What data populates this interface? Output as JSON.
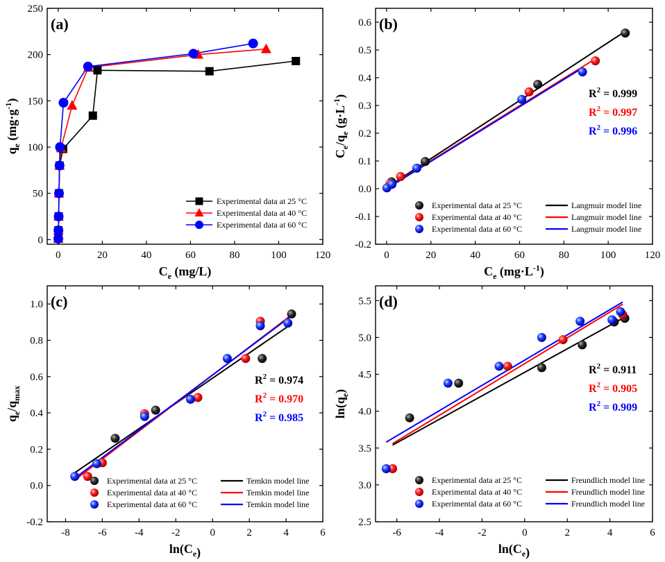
{
  "chart_data": [
    {
      "id": "a",
      "type": "line",
      "panel_label": "(a)",
      "xlabel": "C",
      "xlabel_sub": "e",
      "xlabel_rest": " (mg/L)",
      "ylabel": "q",
      "ylabel_sub": "e",
      "ylabel_rest": " (mg·g",
      "ylabel_sup": "-1",
      "ylabel_close": ")",
      "xlim": [
        -5,
        120
      ],
      "ylim": [
        -5,
        250
      ],
      "xticks": [
        0,
        20,
        40,
        60,
        80,
        100,
        120
      ],
      "yticks": [
        0,
        50,
        100,
        150,
        200,
        250
      ],
      "legend_position": "bottom-right",
      "series": [
        {
          "name": "Experimental data at 25 °C",
          "color": "#000000",
          "marker": "square",
          "x": [
            0.05,
            0.1,
            0.2,
            0.35,
            0.6,
            2.2,
            15.7,
            17.8,
            68.6,
            107.8
          ],
          "y": [
            1,
            10,
            25,
            50,
            80,
            98,
            134,
            183,
            182,
            193
          ]
        },
        {
          "name": "Experimental data at 40 °C",
          "color": "#ff0000",
          "marker": "triangle",
          "x": [
            0.05,
            0.1,
            0.2,
            0.35,
            0.6,
            1.3,
            6.3,
            13.7,
            63.5,
            94.3
          ],
          "y": [
            1,
            10,
            25,
            50,
            80,
            99,
            145,
            186,
            200,
            206
          ]
        },
        {
          "name": "Experimental data at 60 °C",
          "color": "#0000ff",
          "marker": "circle",
          "x": [
            0.05,
            0.1,
            0.2,
            0.35,
            0.6,
            0.8,
            2.4,
            13.5,
            61.3,
            88.4
          ],
          "y": [
            1,
            10,
            25,
            50,
            80,
            100,
            148,
            187,
            201,
            212
          ]
        }
      ]
    },
    {
      "id": "b",
      "type": "scatter",
      "panel_label": "(b)",
      "xlabel": "C",
      "xlabel_sub": "e",
      "xlabel_rest": " (mg·L",
      "xlabel_sup": "-1",
      "xlabel_close": ")",
      "ylabel": "C",
      "ylabel_sub": "e",
      "ylabel_rest": "/q",
      "ylabel_sub2": "e",
      "ylabel_rest2": " (g·L",
      "ylabel_sup": "-1",
      "ylabel_close": ")",
      "xlim": [
        -5,
        120
      ],
      "ylim": [
        -0.2,
        0.65
      ],
      "xticks": [
        0,
        20,
        40,
        60,
        80,
        100,
        120
      ],
      "yticks": [
        -0.2,
        -0.1,
        0.0,
        0.1,
        0.2,
        0.3,
        0.4,
        0.5,
        0.6
      ],
      "legend_position": "bottom-right",
      "r2": [
        {
          "text": "R² = 0.999",
          "color": "#000000"
        },
        {
          "text": "R² = 0.997",
          "color": "#ff0000"
        },
        {
          "text": "R² = 0.996",
          "color": "#0000ff"
        }
      ],
      "series": [
        {
          "name": "Experimental data at 25 °C",
          "line_name": "Langmuir model line",
          "color": "#000000",
          "x": [
            2.2,
            17.4,
            68.2,
            107.7
          ],
          "y": [
            0.025,
            0.098,
            0.376,
            0.561
          ],
          "fit_x": [
            0,
            107.7
          ],
          "fit_y": [
            0.004,
            0.567
          ]
        },
        {
          "name": "Experimental data at 40 °C",
          "line_name": "Langmuir model line",
          "color": "#ff0000",
          "x": [
            1.5,
            6.3,
            64.3,
            94.2
          ],
          "y": [
            0.018,
            0.044,
            0.349,
            0.461
          ],
          "fit_x": [
            0,
            94.2
          ],
          "fit_y": [
            0.002,
            0.468
          ]
        },
        {
          "name": "Experimental data at 60 °C",
          "line_name": "Langmuir model line",
          "color": "#0000ff",
          "x": [
            0.1,
            2.4,
            13.6,
            61.0,
            88.4
          ],
          "y": [
            0.003,
            0.016,
            0.074,
            0.322,
            0.421
          ],
          "fit_x": [
            0,
            88.4
          ],
          "fit_y": [
            0.0,
            0.435
          ]
        }
      ]
    },
    {
      "id": "c",
      "type": "scatter",
      "panel_label": "(c)",
      "xlabel": "ln(C",
      "xlabel_sub": "e",
      "xlabel_close": ")",
      "ylabel": "q",
      "ylabel_sub": "e",
      "ylabel_rest": "/q",
      "ylabel_sub2": "max",
      "xlim": [
        -9,
        6
      ],
      "ylim": [
        -0.2,
        1.1
      ],
      "xticks": [
        -8,
        -6,
        -4,
        -2,
        0,
        2,
        4,
        6
      ],
      "yticks": [
        -0.2,
        0.0,
        0.2,
        0.4,
        0.6,
        0.8,
        1.0
      ],
      "legend_position": "bottom-right",
      "r2": [
        {
          "text": "R² = 0.974",
          "color": "#000000"
        },
        {
          "text": "R² = 0.970",
          "color": "#ff0000"
        },
        {
          "text": "R² = 0.985",
          "color": "#0000ff"
        }
      ],
      "series": [
        {
          "name": "Experimental data at 25 °C",
          "line_name": "Temkin model line",
          "color": "#000000",
          "x": [
            -5.3,
            -3.1,
            2.7,
            4.3
          ],
          "y": [
            0.26,
            0.415,
            0.7,
            0.945
          ],
          "fit_x": [
            -7.5,
            4.3
          ],
          "fit_y": [
            0.07,
            0.89
          ]
        },
        {
          "name": "Experimental data at 40 °C",
          "line_name": "Temkin model line",
          "color": "#ff0000",
          "x": [
            -6.8,
            -6.0,
            -3.7,
            -0.8,
            1.8,
            2.6
          ],
          "y": [
            0.05,
            0.125,
            0.395,
            0.485,
            0.7,
            0.905
          ],
          "fit_x": [
            -7.5,
            4.3
          ],
          "fit_y": [
            0.03,
            0.94
          ]
        },
        {
          "name": "Experimental data at 60 °C",
          "line_name": "Temkin model line",
          "color": "#0000ff",
          "x": [
            -7.5,
            -6.3,
            -3.7,
            -1.2,
            0.8,
            2.6,
            4.1
          ],
          "y": [
            0.05,
            0.12,
            0.38,
            0.475,
            0.7,
            0.88,
            0.895
          ],
          "fit_x": [
            -7.5,
            4.3
          ],
          "fit_y": [
            0.04,
            0.935
          ]
        }
      ]
    },
    {
      "id": "d",
      "type": "scatter",
      "panel_label": "(d)",
      "xlabel": "ln(C",
      "xlabel_sub": "e",
      "xlabel_close": ")",
      "ylabel": "ln(q",
      "ylabel_sub": "e",
      "ylabel_close": ")",
      "xlim": [
        -7,
        6
      ],
      "ylim": [
        2.5,
        5.7
      ],
      "xticks": [
        -6,
        -4,
        -2,
        0,
        2,
        4,
        6
      ],
      "yticks": [
        2.5,
        3.0,
        3.5,
        4.0,
        4.5,
        5.0,
        5.5
      ],
      "legend_position": "bottom-right",
      "r2": [
        {
          "text": "R² = 0.911",
          "color": "#000000"
        },
        {
          "text": "R² = 0.905",
          "color": "#ff0000"
        },
        {
          "text": "R² = 0.909",
          "color": "#0000ff"
        }
      ],
      "series": [
        {
          "name": "Experimental data at 25 °C",
          "line_name": "Freundlich model line",
          "color": "#000000",
          "x": [
            -5.4,
            -3.1,
            0.8,
            2.7,
            4.2,
            4.7
          ],
          "y": [
            3.91,
            4.38,
            4.59,
            4.9,
            5.21,
            5.26
          ],
          "fit_x": [
            -6.2,
            4.6
          ],
          "fit_y": [
            3.54,
            5.26
          ]
        },
        {
          "name": "Experimental data at 40 °C",
          "line_name": "Freundlich model line",
          "color": "#ff0000",
          "x": [
            -6.2,
            -0.8,
            1.8,
            4.6
          ],
          "y": [
            3.22,
            4.61,
            4.97,
            5.31
          ],
          "fit_x": [
            -6.2,
            4.6
          ],
          "fit_y": [
            3.56,
            5.45
          ]
        },
        {
          "name": "Experimental data at 60 °C",
          "line_name": "Freundlich model line",
          "color": "#0000ff",
          "x": [
            -6.5,
            -3.6,
            -1.2,
            0.8,
            2.6,
            4.1,
            4.5
          ],
          "y": [
            3.22,
            4.38,
            4.61,
            5.0,
            5.22,
            5.24,
            5.35
          ],
          "fit_x": [
            -6.5,
            4.6
          ],
          "fit_y": [
            3.58,
            5.48
          ]
        }
      ]
    }
  ]
}
